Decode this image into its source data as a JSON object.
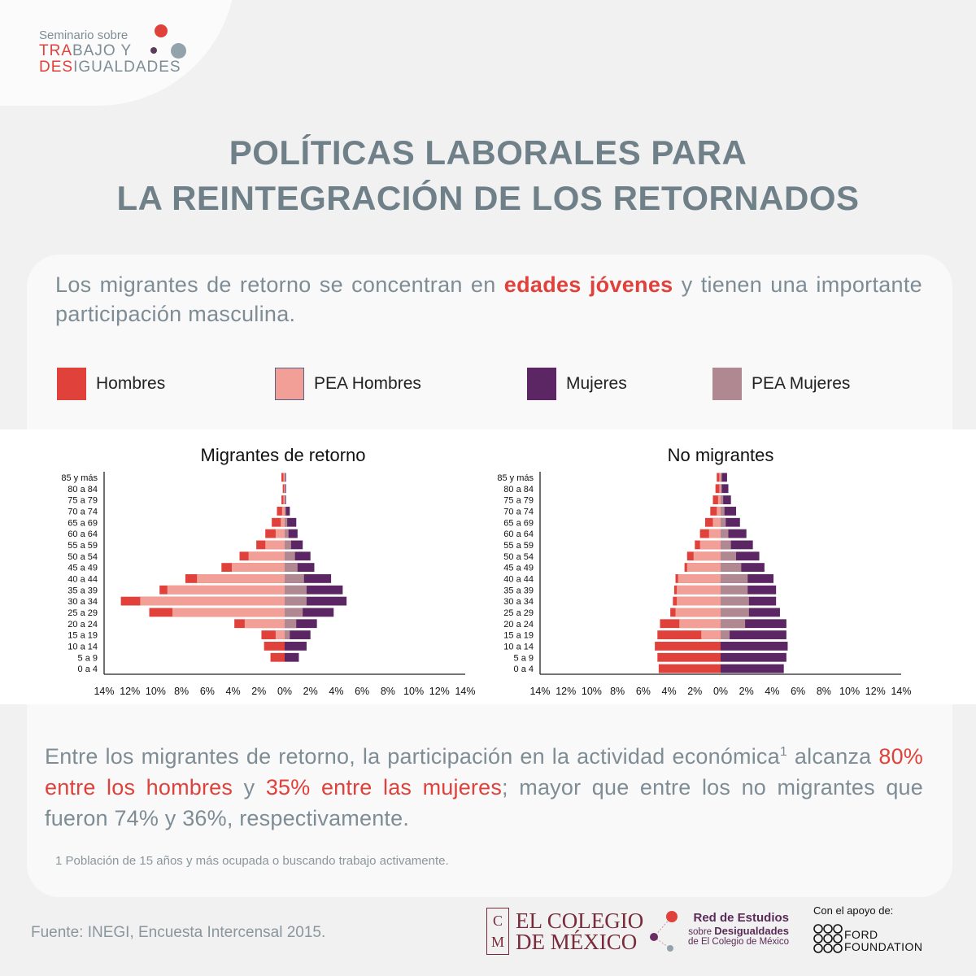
{
  "brand": {
    "line1": "Seminario sobre",
    "line2a": "TRA",
    "line2b": "BAJO Y",
    "line3a": "DES",
    "line3b": "IGUALDADES"
  },
  "title": {
    "line1": "POLÍTICAS LABORALES PARA",
    "line2": "LA REINTEGRACIÓN DE LOS RETORNADOS"
  },
  "intro": {
    "before": "Los migrantes de retorno se concentran en ",
    "highlight": "edades jóvenes",
    "after": " y tienen una importante participación masculina."
  },
  "legend": [
    {
      "label": "Hombres",
      "color": "#e0413b"
    },
    {
      "label": "PEA Hombres",
      "color": "#f2a097"
    },
    {
      "label": "Mujeres",
      "color": "#5c2563"
    },
    {
      "label": "PEA Mujeres",
      "color": "#b08892"
    }
  ],
  "chart_data": [
    {
      "type": "bar",
      "title": "Migrantes de retorno",
      "categories": [
        "85 y más",
        "80 a 84",
        "75 a 79",
        "70 a 74",
        "65 a 69",
        "60 a 64",
        "55 a 59",
        "50 a 54",
        "45 a 49",
        "40 a 44",
        "35 a 39",
        "30 a 34",
        "25 a 29",
        "20 a 24",
        "15 a 19",
        "10 a 14",
        "5 a 9",
        "0 a 4"
      ],
      "series": [
        {
          "name": "Hombres",
          "values": [
            0.25,
            0.15,
            0.25,
            0.6,
            1.0,
            1.5,
            2.2,
            3.5,
            4.9,
            7.7,
            9.7,
            12.7,
            10.5,
            3.9,
            1.8,
            1.6,
            1.1,
            0
          ]
        },
        {
          "name": "PEA Hombres",
          "values": [
            0.1,
            0.05,
            0.1,
            0.2,
            0.3,
            0.7,
            1.5,
            2.8,
            4.1,
            6.8,
            9.1,
            11.2,
            8.7,
            3.1,
            0.7,
            0,
            0,
            0
          ]
        },
        {
          "name": "Mujeres",
          "values": [
            0.1,
            0.1,
            0.1,
            0.4,
            0.9,
            1.0,
            1.4,
            2.0,
            2.3,
            3.6,
            4.5,
            4.8,
            3.8,
            2.5,
            2.0,
            1.7,
            1.1,
            0
          ]
        },
        {
          "name": "PEA Mujeres",
          "values": [
            0.05,
            0.05,
            0.05,
            0.1,
            0.2,
            0.3,
            0.5,
            0.8,
            1.0,
            1.5,
            1.7,
            1.7,
            1.4,
            0.9,
            0.4,
            0,
            0,
            0
          ]
        }
      ],
      "xticks": [
        "14%",
        "12%",
        "10%",
        "8%",
        "6%",
        "4%",
        "2%",
        "0%",
        "2%",
        "4%",
        "6%",
        "8%",
        "10%",
        "12%",
        "14%"
      ],
      "xlim": [
        -14,
        14
      ]
    },
    {
      "type": "bar",
      "title": "No migrantes",
      "categories": [
        "85 y más",
        "80 a 84",
        "75 a 79",
        "70 a 74",
        "65 a 69",
        "60 a 64",
        "55 a 59",
        "50 a 54",
        "45 a 49",
        "40 a 44",
        "35 a 39",
        "30 a 34",
        "25 a 29",
        "20 a 24",
        "15 a 19",
        "10 a 14",
        "5 a 9",
        "0 a 4"
      ],
      "series": [
        {
          "name": "Hombres",
          "values": [
            0.3,
            0.4,
            0.6,
            0.8,
            1.2,
            1.6,
            2.0,
            2.6,
            2.8,
            3.5,
            3.6,
            3.7,
            3.9,
            4.7,
            4.9,
            5.1,
            4.9,
            4.8
          ]
        },
        {
          "name": "PEA Hombres",
          "values": [
            0.1,
            0.1,
            0.2,
            0.3,
            0.6,
            0.9,
            1.6,
            2.1,
            2.6,
            3.3,
            3.4,
            3.4,
            3.5,
            3.2,
            1.5,
            0,
            0,
            0
          ]
        },
        {
          "name": "Mujeres",
          "values": [
            0.5,
            0.6,
            0.8,
            1.2,
            1.5,
            2.0,
            2.5,
            3.0,
            3.4,
            4.1,
            4.3,
            4.3,
            4.6,
            5.1,
            5.1,
            5.2,
            5.1,
            4.9
          ]
        },
        {
          "name": "PEA Mujeres",
          "values": [
            0.1,
            0.1,
            0.2,
            0.3,
            0.4,
            0.6,
            0.8,
            1.2,
            1.6,
            2.1,
            2.1,
            2.2,
            2.2,
            1.9,
            0.7,
            0,
            0,
            0
          ]
        }
      ],
      "xticks": [
        "14%",
        "12%",
        "10%",
        "8%",
        "6%",
        "4%",
        "2%",
        "0%",
        "2%",
        "4%",
        "6%",
        "8%",
        "10%",
        "12%",
        "14%"
      ],
      "xlim": [
        -14,
        14
      ]
    }
  ],
  "lower": {
    "p1": "Entre los migrantes de retorno, la participación en la actividad económica",
    "sup": "1",
    "p2": " alcanza ",
    "h1": "80% entre los hombres",
    "p3": " y ",
    "h2": "35% entre las mujeres",
    "p4": "; mayor que entre los no migrantes que fueron 74% y 36%, respectivamente."
  },
  "footnote": "1 Población de 15 años y más ocupada o buscando trabajo activamente.",
  "source": "Fuente: INEGI, Encuesta Intercensal 2015.",
  "logos": {
    "colegio_line1": "EL COLEGIO",
    "colegio_line2": "DE MÉXICO",
    "colegio_mono1": "C",
    "colegio_mono2": "M",
    "red_l1": "Red de Estudios",
    "red_l2a": "sobre ",
    "red_l2b": "Desigualdades",
    "red_l3": "de El Colegio de México",
    "ford_sup": "Con el apoyo de:",
    "ford_l1": "FORD",
    "ford_l2": "FOUNDATION"
  }
}
